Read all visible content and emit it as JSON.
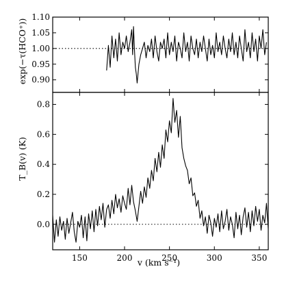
{
  "chart_data": [
    {
      "type": "line",
      "panel": "top",
      "ylabel": "exp(−τ(HCO⁺))",
      "xlim": [
        120,
        360
      ],
      "ylim": [
        0.86,
        1.1
      ],
      "yticks": [
        "0.90",
        "0.95",
        "1.00",
        "1.05",
        "1.10"
      ],
      "reference_line": {
        "y": 1.0,
        "style": "dotted"
      },
      "series": [
        {
          "x": [
            180,
            182,
            184,
            186,
            188,
            190,
            192,
            194,
            196,
            198,
            200,
            202,
            204,
            206,
            208,
            209,
            210,
            211,
            212,
            213,
            214,
            215,
            216,
            218,
            220,
            222,
            224,
            226,
            228,
            230,
            232,
            234,
            236,
            238,
            240,
            242,
            244,
            246,
            248,
            250,
            252,
            254,
            256,
            258,
            260,
            262,
            264,
            266,
            268,
            270,
            272,
            274,
            276,
            278,
            280,
            282,
            284,
            286,
            288,
            290,
            292,
            294,
            296,
            298,
            300,
            302,
            304,
            306,
            308,
            310,
            312,
            314,
            316,
            318,
            320,
            322,
            324,
            326,
            328,
            330,
            332,
            334,
            336,
            338,
            340,
            342,
            344,
            346,
            348,
            350,
            352,
            354,
            356,
            358
          ],
          "y": [
            0.93,
            1.01,
            0.94,
            1.04,
            0.97,
            1.03,
            0.96,
            1.05,
            0.98,
            1.02,
            1.0,
            1.04,
            0.99,
            1.02,
            1.06,
            0.98,
            1.07,
            1.0,
            0.94,
            0.92,
            0.89,
            0.92,
            0.95,
            0.98,
            1.0,
            1.02,
            0.97,
            1.01,
            0.99,
            1.03,
            0.97,
            1.04,
            0.99,
            0.96,
            1.02,
            1.0,
            1.03,
            0.97,
            1.05,
            0.98,
            1.02,
            0.99,
            1.04,
            0.96,
            1.02,
            1.0,
            0.97,
            1.05,
            0.99,
            1.02,
            0.96,
            1.04,
            1.0,
            0.98,
            1.03,
            0.97,
            1.02,
            0.99,
            1.04,
            1.0,
            0.96,
            1.03,
            0.98,
            1.01,
            0.97,
            1.05,
            0.99,
            1.02,
            0.98,
            1.04,
            1.0,
            0.97,
            1.03,
            0.99,
            1.05,
            0.98,
            1.02,
            0.97,
            1.04,
            1.0,
            0.96,
            1.06,
            0.99,
            1.02,
            0.97,
            1.05,
            0.99,
            1.03,
            0.96,
            1.04,
            1.0,
            1.06,
            0.98,
            1.02
          ]
        }
      ]
    },
    {
      "type": "line",
      "panel": "bottom",
      "ylabel": "T_B(v) (K)",
      "xlabel": "v (km s⁻¹)",
      "xlim": [
        120,
        360
      ],
      "ylim": [
        -0.17,
        0.88
      ],
      "xticks": [
        "150",
        "200",
        "250",
        "300",
        "350"
      ],
      "yticks": [
        "0.0",
        "0.2",
        "0.4",
        "0.6",
        "0.8"
      ],
      "reference_line": {
        "y": 0.0,
        "style": "dotted"
      },
      "series": [
        {
          "x": [
            120,
            122,
            124,
            126,
            128,
            130,
            132,
            134,
            136,
            138,
            140,
            142,
            144,
            146,
            148,
            150,
            152,
            154,
            156,
            158,
            160,
            162,
            164,
            166,
            168,
            170,
            172,
            174,
            176,
            178,
            180,
            182,
            184,
            186,
            188,
            190,
            192,
            194,
            196,
            198,
            200,
            202,
            204,
            206,
            208,
            210,
            212,
            214,
            216,
            218,
            220,
            222,
            224,
            226,
            228,
            230,
            232,
            234,
            236,
            238,
            240,
            242,
            244,
            246,
            248,
            250,
            252,
            254,
            256,
            258,
            260,
            262,
            264,
            266,
            268,
            270,
            272,
            274,
            276,
            278,
            280,
            282,
            284,
            286,
            288,
            290,
            292,
            294,
            296,
            298,
            300,
            302,
            304,
            306,
            308,
            310,
            312,
            314,
            316,
            318,
            320,
            322,
            324,
            326,
            328,
            330,
            332,
            334,
            336,
            338,
            340,
            342,
            344,
            346,
            348,
            350,
            352,
            354,
            356,
            358,
            360
          ],
          "y": [
            0.06,
            -0.12,
            0.03,
            -0.08,
            0.05,
            -0.04,
            0.02,
            -0.1,
            0.04,
            -0.06,
            0.01,
            0.08,
            -0.05,
            -0.12,
            0.02,
            -0.02,
            0.06,
            -0.09,
            0.05,
            -0.11,
            0.07,
            -0.03,
            0.09,
            -0.05,
            0.1,
            -0.01,
            0.12,
            0.03,
            0.14,
            -0.02,
            0.1,
            0.13,
            0.04,
            0.16,
            0.07,
            0.2,
            0.11,
            0.17,
            0.08,
            0.19,
            0.14,
            0.1,
            0.24,
            0.13,
            0.26,
            0.15,
            0.09,
            0.02,
            0.12,
            0.22,
            0.14,
            0.25,
            0.18,
            0.31,
            0.24,
            0.36,
            0.29,
            0.44,
            0.35,
            0.48,
            0.38,
            0.53,
            0.44,
            0.63,
            0.55,
            0.69,
            0.61,
            0.84,
            0.68,
            0.76,
            0.58,
            0.72,
            0.51,
            0.44,
            0.39,
            0.36,
            0.27,
            0.31,
            0.19,
            0.21,
            0.12,
            0.16,
            0.04,
            0.09,
            -0.01,
            0.05,
            -0.06,
            0.06,
            0.01,
            -0.08,
            0.04,
            -0.02,
            0.07,
            -0.05,
            0.09,
            -0.03,
            0.02,
            0.1,
            -0.04,
            0.05,
            0.0,
            -0.09,
            0.08,
            -0.03,
            0.06,
            -0.07,
            0.05,
            0.11,
            -0.02,
            0.08,
            -0.05,
            0.09,
            -0.01,
            0.12,
            0.02,
            0.1,
            -0.04,
            0.06,
            0.01,
            0.14,
            -0.03
          ]
        }
      ]
    }
  ]
}
